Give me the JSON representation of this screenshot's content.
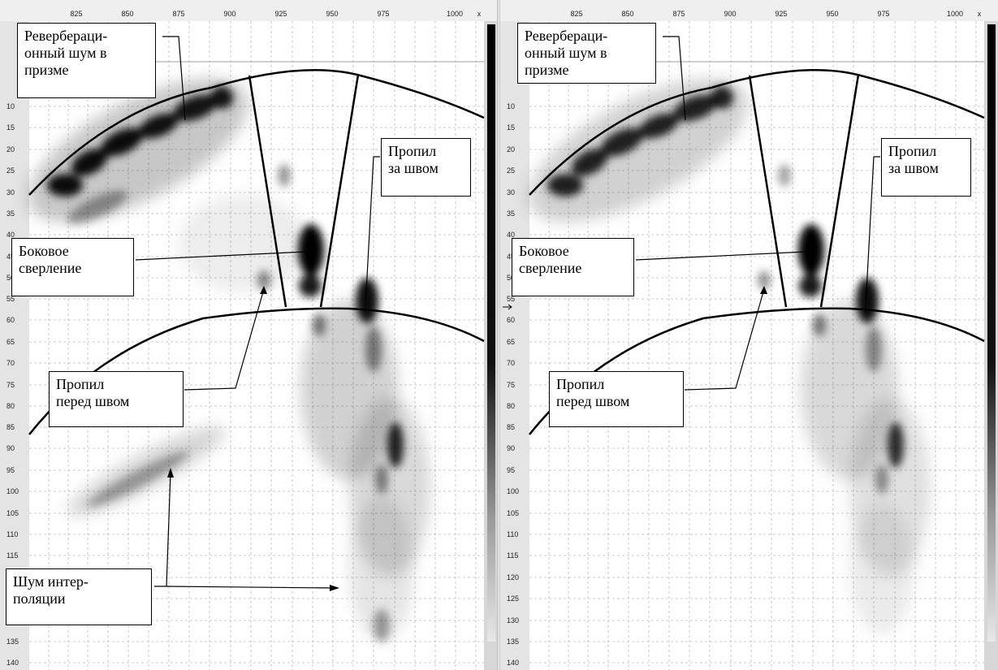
{
  "x_axis": {
    "ticks": [
      "825",
      "850",
      "875",
      "900",
      "925",
      "950",
      "975",
      "1000"
    ],
    "label": "x"
  },
  "y_axis": {
    "ticks": [
      "10",
      "15",
      "20",
      "25",
      "30",
      "35",
      "40",
      "45",
      "50",
      "55",
      "60",
      "65",
      "70",
      "75",
      "80",
      "85",
      "90",
      "95",
      "100",
      "105",
      "110",
      "115",
      "120",
      "125",
      "130",
      "135",
      "140"
    ]
  },
  "panels": [
    {
      "callouts": {
        "reverb": "Реверберaци-\nонный шум в\nпризме",
        "cut_behind": "Пропил\nза швом",
        "side_drill": "Боковое\nсверление",
        "cut_front": "Пропил\nперед швом",
        "interp_noise": "Шум интер-\nполяции"
      }
    },
    {
      "callouts": {
        "reverb": "Реверберaци-\nонный шум в\nпризме",
        "cut_behind": "Пропил\nза швом",
        "side_drill": "Боковое\nсверление",
        "cut_front": "Пропил\nперед швом"
      }
    }
  ],
  "colors": {
    "frame": "#000000",
    "grid": "#b8b8b8",
    "axis_bg": "#e4e4e4"
  }
}
